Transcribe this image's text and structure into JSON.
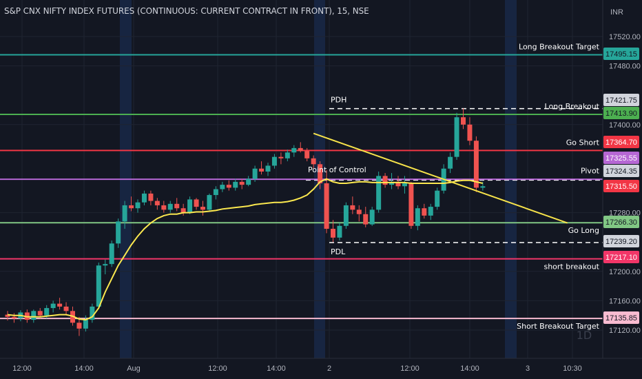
{
  "title": "S&P CNX NIFTY INDEX FUTURES (CONTINUOUS: CURRENT CONTRACT IN FRONT), 15, NSE",
  "currency": "INR",
  "watermark": "1D",
  "colors": {
    "background": "#131722",
    "grid": "#1f2431",
    "up": "#26a69a",
    "down": "#ef5350",
    "vwap": "#fce94f",
    "trendline": "#f7e34a",
    "session_band": "#172541"
  },
  "chart_data": {
    "type": "candlestick",
    "symbol": "S&P CNX NIFTY INDEX FUTURES (CONTINUOUS: CURRENT CONTRACT IN FRONT)",
    "interval": "15",
    "exchange": "NSE",
    "ylim": [
      17105,
      17545
    ],
    "y_ticks": [
      17120,
      17160,
      17200,
      17280,
      17400,
      17480,
      17520
    ],
    "x_ticks": [
      "12:00",
      "14:00",
      "Aug",
      "12:00",
      "14:00",
      "2",
      "12:00",
      "14:00",
      "3",
      "10:30"
    ],
    "candles": [
      {
        "o": 17141,
        "h": 17146,
        "l": 17133,
        "c": 17138
      },
      {
        "o": 17138,
        "h": 17143,
        "l": 17130,
        "c": 17136
      },
      {
        "o": 17136,
        "h": 17147,
        "l": 17132,
        "c": 17144
      },
      {
        "o": 17144,
        "h": 17148,
        "l": 17130,
        "c": 17134
      },
      {
        "o": 17134,
        "h": 17148,
        "l": 17130,
        "c": 17146
      },
      {
        "o": 17146,
        "h": 17150,
        "l": 17136,
        "c": 17140
      },
      {
        "o": 17140,
        "h": 17154,
        "l": 17136,
        "c": 17150
      },
      {
        "o": 17150,
        "h": 17160,
        "l": 17144,
        "c": 17156
      },
      {
        "o": 17156,
        "h": 17164,
        "l": 17148,
        "c": 17152
      },
      {
        "o": 17152,
        "h": 17158,
        "l": 17140,
        "c": 17146
      },
      {
        "o": 17146,
        "h": 17152,
        "l": 17126,
        "c": 17130
      },
      {
        "o": 17130,
        "h": 17138,
        "l": 17112,
        "c": 17122
      },
      {
        "o": 17122,
        "h": 17140,
        "l": 17118,
        "c": 17134
      },
      {
        "o": 17134,
        "h": 17156,
        "l": 17130,
        "c": 17152
      },
      {
        "o": 17152,
        "h": 17212,
        "l": 17150,
        "c": 17208
      },
      {
        "o": 17208,
        "h": 17216,
        "l": 17196,
        "c": 17210
      },
      {
        "o": 17210,
        "h": 17242,
        "l": 17206,
        "c": 17238
      },
      {
        "o": 17238,
        "h": 17272,
        "l": 17232,
        "c": 17268
      },
      {
        "o": 17268,
        "h": 17296,
        "l": 17258,
        "c": 17290
      },
      {
        "o": 17290,
        "h": 17302,
        "l": 17282,
        "c": 17286
      },
      {
        "o": 17286,
        "h": 17298,
        "l": 17280,
        "c": 17294
      },
      {
        "o": 17294,
        "h": 17310,
        "l": 17290,
        "c": 17306
      },
      {
        "o": 17306,
        "h": 17310,
        "l": 17290,
        "c": 17296
      },
      {
        "o": 17296,
        "h": 17300,
        "l": 17284,
        "c": 17290
      },
      {
        "o": 17290,
        "h": 17296,
        "l": 17280,
        "c": 17284
      },
      {
        "o": 17284,
        "h": 17296,
        "l": 17280,
        "c": 17292
      },
      {
        "o": 17292,
        "h": 17300,
        "l": 17282,
        "c": 17286
      },
      {
        "o": 17286,
        "h": 17292,
        "l": 17276,
        "c": 17280
      },
      {
        "o": 17280,
        "h": 17302,
        "l": 17278,
        "c": 17298
      },
      {
        "o": 17298,
        "h": 17300,
        "l": 17284,
        "c": 17288
      },
      {
        "o": 17288,
        "h": 17296,
        "l": 17276,
        "c": 17284
      },
      {
        "o": 17284,
        "h": 17306,
        "l": 17282,
        "c": 17304
      },
      {
        "o": 17304,
        "h": 17316,
        "l": 17298,
        "c": 17312
      },
      {
        "o": 17312,
        "h": 17322,
        "l": 17308,
        "c": 17318
      },
      {
        "o": 17318,
        "h": 17324,
        "l": 17310,
        "c": 17314
      },
      {
        "o": 17314,
        "h": 17326,
        "l": 17310,
        "c": 17322
      },
      {
        "o": 17322,
        "h": 17326,
        "l": 17312,
        "c": 17318
      },
      {
        "o": 17318,
        "h": 17330,
        "l": 17316,
        "c": 17326
      },
      {
        "o": 17326,
        "h": 17344,
        "l": 17322,
        "c": 17340
      },
      {
        "o": 17340,
        "h": 17350,
        "l": 17332,
        "c": 17336
      },
      {
        "o": 17336,
        "h": 17348,
        "l": 17330,
        "c": 17344
      },
      {
        "o": 17344,
        "h": 17360,
        "l": 17340,
        "c": 17356
      },
      {
        "o": 17356,
        "h": 17362,
        "l": 17346,
        "c": 17354
      },
      {
        "o": 17354,
        "h": 17366,
        "l": 17350,
        "c": 17362
      },
      {
        "o": 17362,
        "h": 17372,
        "l": 17356,
        "c": 17368
      },
      {
        "o": 17368,
        "h": 17376,
        "l": 17362,
        "c": 17364
      },
      {
        "o": 17364,
        "h": 17368,
        "l": 17350,
        "c": 17354
      },
      {
        "o": 17354,
        "h": 17358,
        "l": 17340,
        "c": 17346
      },
      {
        "o": 17346,
        "h": 17350,
        "l": 17312,
        "c": 17320
      },
      {
        "o": 17320,
        "h": 17338,
        "l": 17252,
        "c": 17258
      },
      {
        "o": 17258,
        "h": 17270,
        "l": 17240,
        "c": 17246
      },
      {
        "o": 17246,
        "h": 17266,
        "l": 17242,
        "c": 17262
      },
      {
        "o": 17262,
        "h": 17294,
        "l": 17258,
        "c": 17290
      },
      {
        "o": 17290,
        "h": 17302,
        "l": 17278,
        "c": 17284
      },
      {
        "o": 17284,
        "h": 17290,
        "l": 17268,
        "c": 17278
      },
      {
        "o": 17278,
        "h": 17288,
        "l": 17260,
        "c": 17264
      },
      {
        "o": 17264,
        "h": 17288,
        "l": 17262,
        "c": 17284
      },
      {
        "o": 17284,
        "h": 17336,
        "l": 17280,
        "c": 17330
      },
      {
        "o": 17330,
        "h": 17334,
        "l": 17314,
        "c": 17318
      },
      {
        "o": 17318,
        "h": 17334,
        "l": 17312,
        "c": 17322
      },
      {
        "o": 17322,
        "h": 17330,
        "l": 17312,
        "c": 17316
      },
      {
        "o": 17316,
        "h": 17330,
        "l": 17306,
        "c": 17320
      },
      {
        "o": 17320,
        "h": 17322,
        "l": 17258,
        "c": 17262
      },
      {
        "o": 17262,
        "h": 17290,
        "l": 17256,
        "c": 17286
      },
      {
        "o": 17286,
        "h": 17292,
        "l": 17272,
        "c": 17276
      },
      {
        "o": 17276,
        "h": 17292,
        "l": 17270,
        "c": 17288
      },
      {
        "o": 17288,
        "h": 17314,
        "l": 17284,
        "c": 17310
      },
      {
        "o": 17310,
        "h": 17346,
        "l": 17306,
        "c": 17340
      },
      {
        "o": 17340,
        "h": 17362,
        "l": 17334,
        "c": 17356
      },
      {
        "o": 17356,
        "h": 17416,
        "l": 17352,
        "c": 17410
      },
      {
        "o": 17410,
        "h": 17422,
        "l": 17394,
        "c": 17400
      },
      {
        "o": 17400,
        "h": 17410,
        "l": 17372,
        "c": 17378
      },
      {
        "o": 17378,
        "h": 17384,
        "l": 17308,
        "c": 17314
      },
      {
        "o": 17314,
        "h": 17322,
        "l": 17310,
        "c": 17316
      }
    ],
    "vwap": [
      17141,
      17140,
      17140,
      17138,
      17138,
      17138,
      17139,
      17140,
      17141,
      17141,
      17139,
      17135,
      17134,
      17138,
      17150,
      17172,
      17190,
      17208,
      17222,
      17236,
      17248,
      17258,
      17266,
      17272,
      17276,
      17278,
      17278,
      17280,
      17280,
      17281,
      17281,
      17282,
      17283,
      17285,
      17286,
      17287,
      17288,
      17289,
      17291,
      17292,
      17293,
      17294,
      17294,
      17295,
      17297,
      17300,
      17304,
      17312,
      17322,
      17326,
      17322,
      17320,
      17320,
      17321,
      17322,
      17322,
      17321,
      17321,
      17321,
      17321,
      17321,
      17321,
      17320,
      17320,
      17320,
      17320,
      17320,
      17320,
      17321,
      17323,
      17324,
      17324,
      17322,
      17320
    ],
    "levels": [
      {
        "name": "Long Breakout Target",
        "price": 17495.15,
        "color": "#26a69a",
        "label": "Long Breakout Target",
        "badge": "17495.15",
        "badge_bg": "#26a69a",
        "badge_fg": "#131722"
      },
      {
        "name": "PDH",
        "price": 17421.75,
        "color": "#ffffff",
        "dashed": true,
        "label": "PDH",
        "badge": "17421.75",
        "badge_bg": "#d1d4dc",
        "badge_fg": "#131722"
      },
      {
        "name": "Long Breakout",
        "price": 17413.9,
        "color": "#4caf50",
        "label": "Long Breakout",
        "badge": "17413.90",
        "badge_bg": "#4caf50",
        "badge_fg": "#131722"
      },
      {
        "name": "Go Short",
        "price": 17364.7,
        "color": "#f23645",
        "label": "Go Short",
        "badge": "17364.70",
        "badge_bg": "#f23645",
        "badge_fg": "#ffffff"
      },
      {
        "name": "Point of Control",
        "price": 17325.55,
        "color": "#b667d4",
        "label": "Point of Control",
        "badge": "17325.55",
        "badge_bg": "#b667d4",
        "badge_fg": "#ffffff"
      },
      {
        "name": "Pivot",
        "price": 17324.35,
        "color": "#ffffff",
        "dashed": true,
        "label": "Pivot",
        "badge": "17324.35",
        "badge_bg": "#d1d4dc",
        "badge_fg": "#131722"
      },
      {
        "name": "Current",
        "price": 17315.5,
        "color": "#ef5350",
        "label": "",
        "badge": "17315.50",
        "badge_bg": "#f23645",
        "badge_fg": "#ffffff"
      },
      {
        "name": "Go Long",
        "price": 17266.3,
        "color": "#81c784",
        "label": "Go Long",
        "badge": "17266.30",
        "badge_bg": "#81c784",
        "badge_fg": "#131722"
      },
      {
        "name": "PDL",
        "price": 17239.2,
        "color": "#ffffff",
        "dashed": true,
        "label": "PDL",
        "badge": "17239.20",
        "badge_bg": "#d1d4dc",
        "badge_fg": "#131722"
      },
      {
        "name": "short breakout",
        "price": 17217.1,
        "color": "#f23668",
        "label": "short breakout",
        "badge": "17217.10",
        "badge_bg": "#f23668",
        "badge_fg": "#ffffff"
      },
      {
        "name": "Short Breakout Target",
        "price": 17135.85,
        "color": "#f8bbd0",
        "label": "Short  Breakout Target",
        "badge": "17135.85",
        "badge_bg": "#f8bbd0",
        "badge_fg": "#131722"
      }
    ],
    "trendline": {
      "from_candle": 47,
      "from_price": 17388,
      "to_candle": 86,
      "to_price": 17266
    }
  }
}
